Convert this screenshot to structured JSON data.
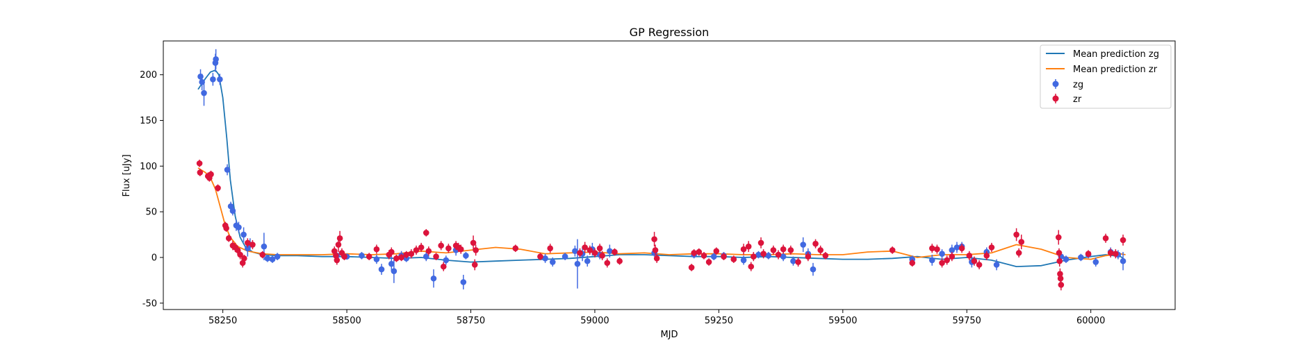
{
  "chart_data": {
    "type": "scatter",
    "title": "GP Regression",
    "xlabel": "MJD",
    "ylabel": "Flux [uJy]",
    "xlim": [
      58130,
      60170
    ],
    "ylim": [
      -57,
      237
    ],
    "xticks": [
      58250,
      58500,
      58750,
      59000,
      59250,
      59500,
      59750,
      60000
    ],
    "yticks": [
      -50,
      0,
      50,
      100,
      150,
      200
    ],
    "grid": false,
    "legend_position": "top-right",
    "colors": {
      "mean_zg": "#1f77b4",
      "mean_zr": "#ff7f0e",
      "zg": "#4169e1",
      "zr": "#dc143c"
    },
    "lines": [
      {
        "name": "Mean prediction zg",
        "x": [
          58200,
          58215,
          58225,
          58235,
          58242,
          58250,
          58258,
          58265,
          58275,
          58285,
          58295,
          58310,
          58330,
          58360,
          58400,
          58450,
          58500,
          58550,
          58600,
          58650,
          58700,
          58750,
          58800,
          58850,
          58900,
          58950,
          59000,
          59050,
          59100,
          59150,
          59200,
          59250,
          59300,
          59350,
          59400,
          59450,
          59500,
          59550,
          59600,
          59650,
          59700,
          59750,
          59800,
          59850,
          59900,
          59950,
          60000,
          60030,
          60060,
          60070
        ],
        "y": [
          184,
          196,
          203,
          205,
          200,
          175,
          130,
          85,
          45,
          22,
          12,
          6,
          3,
          2,
          2,
          1,
          1,
          0,
          -1,
          0,
          -3,
          -5,
          -4,
          -3,
          -2,
          -1,
          1,
          3,
          3,
          2,
          1,
          1,
          0,
          1,
          0,
          -1,
          -2,
          -2,
          -1,
          1,
          -2,
          0,
          -3,
          -10,
          -9,
          -3,
          1,
          3,
          1,
          -3
        ]
      },
      {
        "name": "Mean prediction zr",
        "x": [
          58200,
          58215,
          58225,
          58235,
          58245,
          58255,
          58265,
          58280,
          58300,
          58330,
          58360,
          58400,
          58450,
          58500,
          58550,
          58600,
          58650,
          58700,
          58750,
          58800,
          58850,
          58900,
          58950,
          59000,
          59050,
          59100,
          59150,
          59200,
          59250,
          59300,
          59350,
          59400,
          59450,
          59500,
          59550,
          59600,
          59650,
          59700,
          59750,
          59800,
          59850,
          59900,
          59950,
          60000,
          60030,
          60060,
          60070
        ],
        "y": [
          98,
          93,
          87,
          75,
          55,
          35,
          22,
          12,
          7,
          4,
          3,
          3,
          3,
          4,
          3,
          4,
          7,
          5,
          8,
          11,
          9,
          4,
          5,
          6,
          4,
          5,
          3,
          4,
          4,
          3,
          3,
          4,
          3,
          3,
          6,
          7,
          0,
          3,
          3,
          5,
          14,
          9,
          0,
          -2,
          2,
          4,
          3
        ]
      }
    ],
    "series": [
      {
        "name": "zg",
        "points": [
          [
            58205,
            198,
            8
          ],
          [
            58208,
            192,
            9
          ],
          [
            58212,
            180,
            14
          ],
          [
            58235,
            213,
            10
          ],
          [
            58236,
            217,
            11
          ],
          [
            58230,
            195,
            7
          ],
          [
            58244,
            195,
            6
          ],
          [
            58259,
            96,
            6
          ],
          [
            58266,
            56,
            5
          ],
          [
            58270,
            51,
            5
          ],
          [
            58277,
            35,
            6
          ],
          [
            58282,
            33,
            6
          ],
          [
            58292,
            25,
            8
          ],
          [
            58300,
            10,
            9
          ],
          [
            58305,
            14,
            7
          ],
          [
            58333,
            12,
            15
          ],
          [
            58340,
            -1,
            4
          ],
          [
            58350,
            -2,
            4
          ],
          [
            58360,
            1,
            4
          ],
          [
            58480,
            2,
            3
          ],
          [
            58500,
            1,
            3
          ],
          [
            58530,
            2,
            4
          ],
          [
            58560,
            -2,
            5
          ],
          [
            58570,
            -13,
            6
          ],
          [
            58590,
            -7,
            8
          ],
          [
            58595,
            -15,
            13
          ],
          [
            58610,
            2,
            5
          ],
          [
            58620,
            -1,
            4
          ],
          [
            58660,
            1,
            5
          ],
          [
            58675,
            -23,
            10
          ],
          [
            58700,
            -3,
            5
          ],
          [
            58720,
            8,
            6
          ],
          [
            58735,
            -27,
            8
          ],
          [
            58740,
            2,
            4
          ],
          [
            58900,
            -1,
            5
          ],
          [
            58915,
            -5,
            5
          ],
          [
            58940,
            1,
            4
          ],
          [
            58960,
            7,
            6
          ],
          [
            58965,
            -7,
            27
          ],
          [
            58975,
            4,
            8
          ],
          [
            58985,
            -4,
            6
          ],
          [
            58995,
            9,
            7
          ],
          [
            59010,
            3,
            5
          ],
          [
            59030,
            7,
            7
          ],
          [
            59120,
            5,
            4
          ],
          [
            59200,
            3,
            4
          ],
          [
            59240,
            1,
            4
          ],
          [
            59260,
            2,
            4
          ],
          [
            59300,
            -3,
            5
          ],
          [
            59330,
            3,
            4
          ],
          [
            59350,
            2,
            4
          ],
          [
            59380,
            1,
            5
          ],
          [
            59400,
            -4,
            5
          ],
          [
            59420,
            14,
            8
          ],
          [
            59430,
            4,
            6
          ],
          [
            59440,
            -13,
            7
          ],
          [
            59640,
            -2,
            4
          ],
          [
            59680,
            -3,
            6
          ],
          [
            59700,
            4,
            5
          ],
          [
            59720,
            8,
            6
          ],
          [
            59730,
            11,
            6
          ],
          [
            59740,
            12,
            5
          ],
          [
            59760,
            -5,
            6
          ],
          [
            59790,
            6,
            5
          ],
          [
            59810,
            -8,
            6
          ],
          [
            59940,
            1,
            5
          ],
          [
            59950,
            -2,
            4
          ],
          [
            59980,
            0,
            4
          ],
          [
            59995,
            3,
            4
          ],
          [
            60010,
            -5,
            5
          ],
          [
            60040,
            6,
            5
          ],
          [
            60055,
            3,
            5
          ],
          [
            60065,
            -4,
            10
          ]
        ]
      },
      {
        "name": "zr",
        "points": [
          [
            58203,
            103,
            4
          ],
          [
            58204,
            93,
            4
          ],
          [
            58220,
            89,
            4
          ],
          [
            58223,
            87,
            4
          ],
          [
            58226,
            91,
            4
          ],
          [
            58240,
            76,
            4
          ],
          [
            58255,
            35,
            4
          ],
          [
            58257,
            32,
            4
          ],
          [
            58262,
            21,
            4
          ],
          [
            58270,
            13,
            5
          ],
          [
            58275,
            11,
            5
          ],
          [
            58280,
            8,
            5
          ],
          [
            58285,
            3,
            5
          ],
          [
            58290,
            -6,
            5
          ],
          [
            58293,
            -1,
            4
          ],
          [
            58300,
            16,
            5
          ],
          [
            58310,
            14,
            5
          ],
          [
            58330,
            3,
            4
          ],
          [
            58475,
            7,
            5
          ],
          [
            58478,
            2,
            5
          ],
          [
            58480,
            -3,
            5
          ],
          [
            58483,
            14,
            8
          ],
          [
            58486,
            21,
            8
          ],
          [
            58490,
            5,
            5
          ],
          [
            58495,
            1,
            4
          ],
          [
            58545,
            1,
            4
          ],
          [
            58560,
            9,
            5
          ],
          [
            58585,
            3,
            5
          ],
          [
            58590,
            6,
            5
          ],
          [
            58600,
            -1,
            4
          ],
          [
            58610,
            0,
            4
          ],
          [
            58620,
            3,
            4
          ],
          [
            58630,
            4,
            5
          ],
          [
            58640,
            8,
            5
          ],
          [
            58650,
            11,
            5
          ],
          [
            58660,
            27,
            4
          ],
          [
            58665,
            7,
            5
          ],
          [
            58680,
            1,
            4
          ],
          [
            58690,
            13,
            5
          ],
          [
            58695,
            -10,
            5
          ],
          [
            58705,
            10,
            5
          ],
          [
            58720,
            13,
            5
          ],
          [
            58725,
            11,
            5
          ],
          [
            58730,
            9,
            5
          ],
          [
            58755,
            16,
            8
          ],
          [
            58760,
            8,
            6
          ],
          [
            58758,
            -8,
            6
          ],
          [
            58840,
            10,
            4
          ],
          [
            58890,
            1,
            4
          ],
          [
            58910,
            10,
            5
          ],
          [
            58970,
            5,
            5
          ],
          [
            58980,
            11,
            6
          ],
          [
            58990,
            8,
            5
          ],
          [
            59000,
            5,
            5
          ],
          [
            59010,
            10,
            5
          ],
          [
            59015,
            2,
            5
          ],
          [
            59025,
            -6,
            5
          ],
          [
            59040,
            6,
            4
          ],
          [
            59050,
            -4,
            4
          ],
          [
            59120,
            20,
            8
          ],
          [
            59122,
            8,
            6
          ],
          [
            59125,
            -1,
            5
          ],
          [
            59195,
            -11,
            4
          ],
          [
            59200,
            5,
            4
          ],
          [
            59210,
            6,
            4
          ],
          [
            59220,
            2,
            4
          ],
          [
            59230,
            -5,
            4
          ],
          [
            59245,
            7,
            4
          ],
          [
            59260,
            1,
            4
          ],
          [
            59280,
            -2,
            4
          ],
          [
            59300,
            9,
            6
          ],
          [
            59310,
            12,
            6
          ],
          [
            59315,
            -10,
            5
          ],
          [
            59320,
            1,
            5
          ],
          [
            59335,
            16,
            6
          ],
          [
            59340,
            4,
            5
          ],
          [
            59360,
            8,
            5
          ],
          [
            59370,
            3,
            5
          ],
          [
            59380,
            9,
            5
          ],
          [
            59395,
            8,
            5
          ],
          [
            59410,
            -5,
            5
          ],
          [
            59430,
            1,
            5
          ],
          [
            59445,
            15,
            5
          ],
          [
            59455,
            8,
            5
          ],
          [
            59465,
            2,
            4
          ],
          [
            59600,
            8,
            4
          ],
          [
            59640,
            -6,
            4
          ],
          [
            59680,
            10,
            5
          ],
          [
            59690,
            9,
            5
          ],
          [
            59700,
            -6,
            5
          ],
          [
            59710,
            -3,
            5
          ],
          [
            59720,
            1,
            5
          ],
          [
            59740,
            10,
            5
          ],
          [
            59755,
            2,
            5
          ],
          [
            59765,
            -4,
            5
          ],
          [
            59775,
            -8,
            5
          ],
          [
            59790,
            2,
            5
          ],
          [
            59800,
            11,
            5
          ],
          [
            59850,
            25,
            7
          ],
          [
            59860,
            17,
            8
          ],
          [
            59855,
            5,
            5
          ],
          [
            59935,
            22,
            8
          ],
          [
            59937,
            -4,
            6
          ],
          [
            59938,
            -18,
            6
          ],
          [
            59939,
            -23,
            6
          ],
          [
            59940,
            -30,
            6
          ],
          [
            59936,
            5,
            5
          ],
          [
            59995,
            4,
            4
          ],
          [
            60030,
            21,
            5
          ],
          [
            60040,
            5,
            5
          ],
          [
            60050,
            4,
            5
          ],
          [
            60065,
            19,
            6
          ]
        ]
      }
    ]
  }
}
